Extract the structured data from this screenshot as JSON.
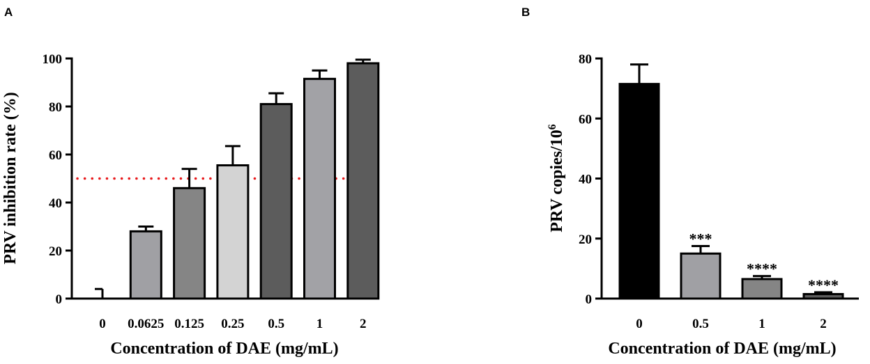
{
  "chart_data": [
    {
      "panel": "A",
      "type": "bar",
      "categories": [
        "0",
        "0.0625",
        "0.125",
        "0.25",
        "0.5",
        "1",
        "2"
      ],
      "values": [
        0,
        28,
        46,
        55.5,
        81,
        91.5,
        98
      ],
      "errors": [
        4,
        2,
        8,
        8,
        4.5,
        3.5,
        1.5
      ],
      "bar_colors": [
        "#000000",
        "#a0a0a4",
        "#858585",
        "#d3d3d3",
        "#5c5c5c",
        "#a2a2a6",
        "#5c5c5c"
      ],
      "xlabel": "Concentration of DAE (mg/mL)",
      "ylabel": "PRV inhibition rate (%)",
      "ylim": [
        0,
        100
      ],
      "yticks": [
        0,
        20,
        40,
        60,
        80,
        100
      ],
      "reference_line": {
        "value": 50,
        "color": "#e8191b",
        "style": "dotted"
      }
    },
    {
      "panel": "B",
      "type": "bar",
      "categories": [
        "0",
        "0.5",
        "1",
        "2"
      ],
      "values": [
        71.5,
        15,
        6.5,
        1.5
      ],
      "errors": [
        6.5,
        2.5,
        1,
        0.6
      ],
      "bar_colors": [
        "#000000",
        "#a0a0a4",
        "#858585",
        "#5c5c5c"
      ],
      "annotations": [
        "",
        "***",
        "****",
        "****"
      ],
      "xlabel": "Concentration of DAE (mg/mL)",
      "ylabel": "PRV copies/10",
      "ylabel_superscript": "6",
      "ylim": [
        0,
        80
      ],
      "yticks": [
        0,
        20,
        40,
        60,
        80
      ]
    }
  ]
}
